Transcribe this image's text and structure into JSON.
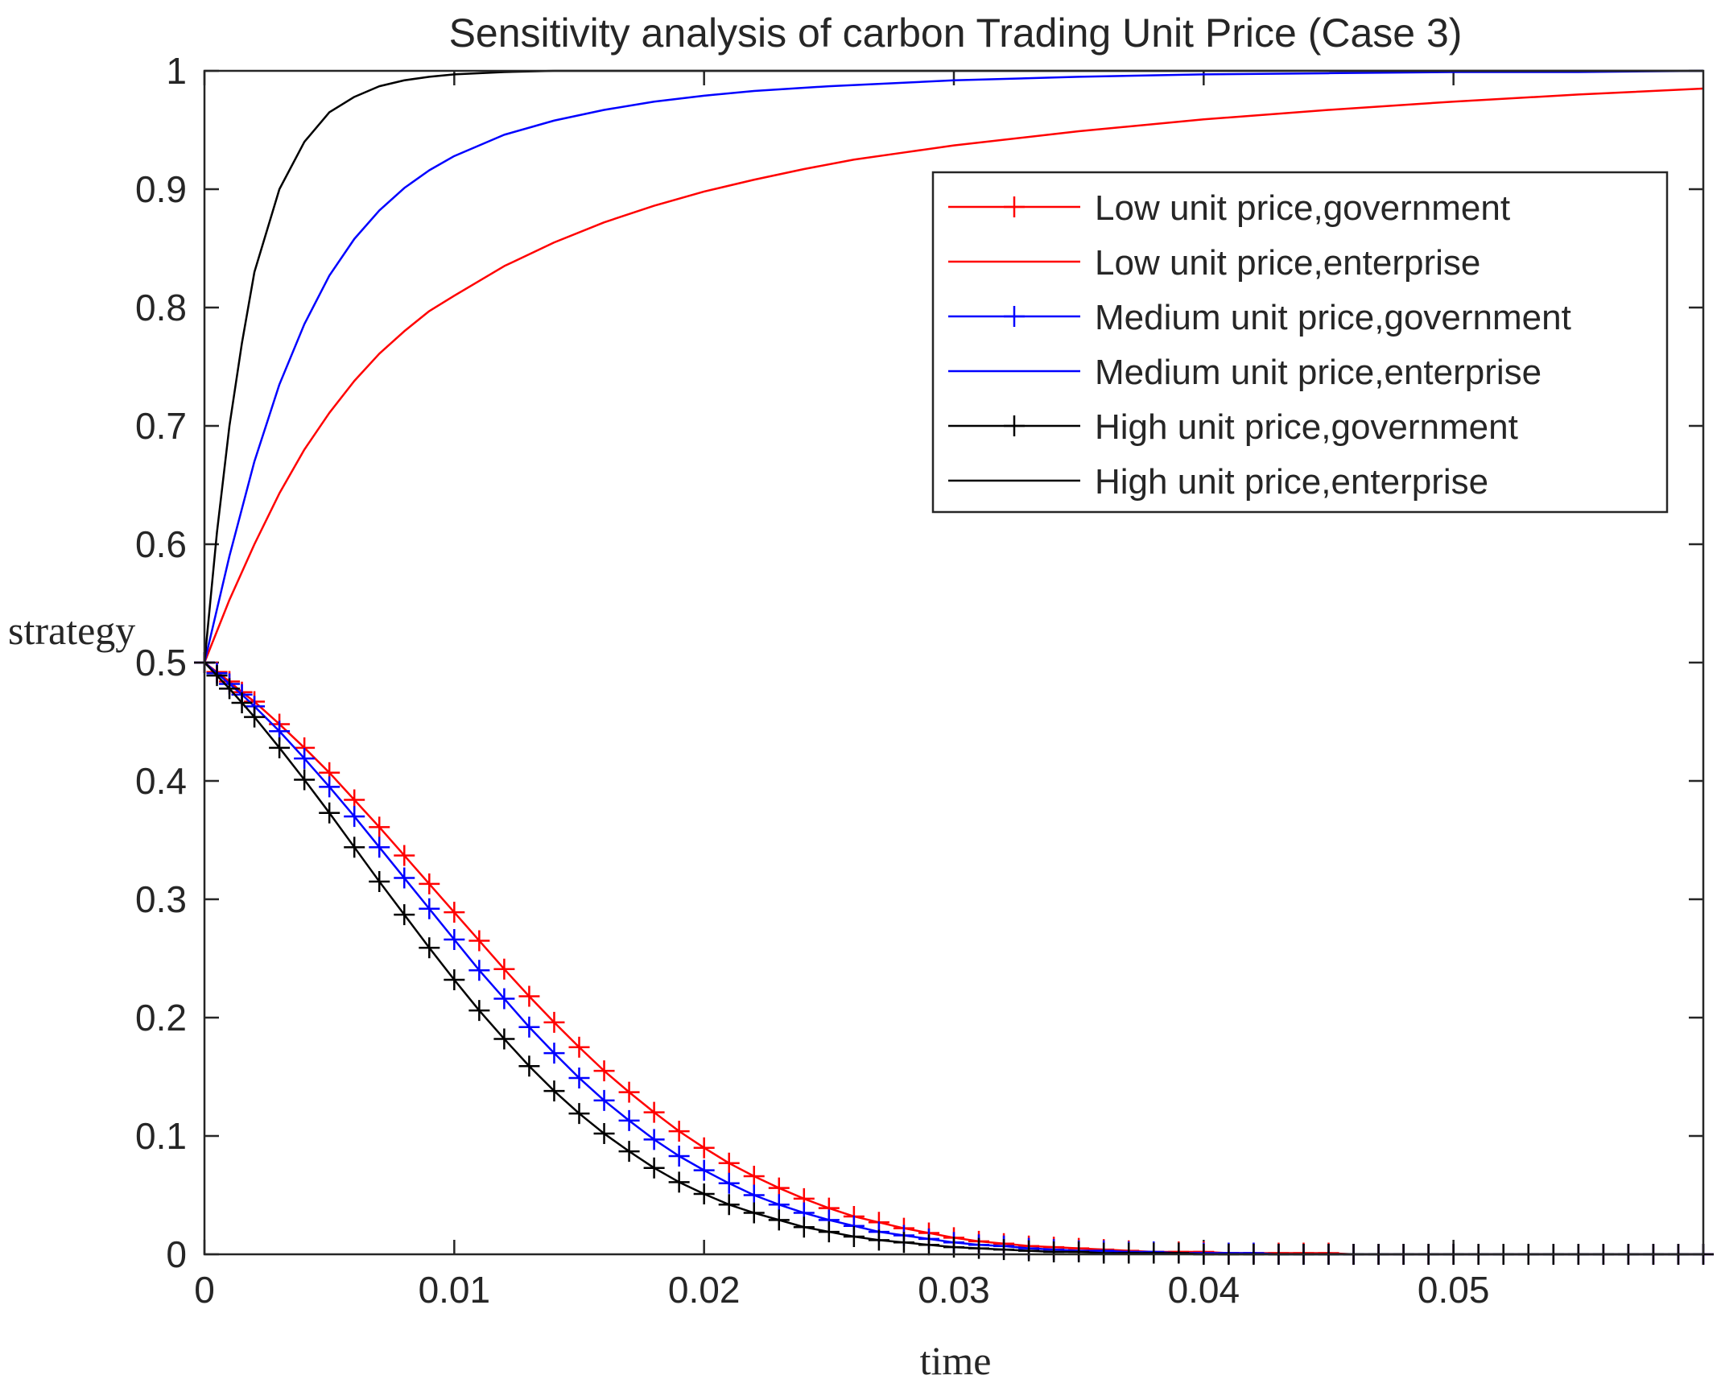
{
  "chart_data": {
    "type": "line",
    "title": "Sensitivity analysis of carbon Trading Unit Price (Case 3)",
    "xlabel": "time",
    "ylabel": "strategy",
    "xlim": [
      0,
      0.06
    ],
    "ylim": [
      0,
      1
    ],
    "xticks": [
      0,
      0.01,
      0.02,
      0.03,
      0.04,
      0.05
    ],
    "xtick_labels": [
      "0",
      "0.01",
      "0.02",
      "0.03",
      "0.04",
      "0.05"
    ],
    "yticks": [
      0,
      0.1,
      0.2,
      0.3,
      0.4,
      0.5,
      0.6,
      0.7,
      0.8,
      0.9,
      1
    ],
    "ytick_labels": [
      "0",
      "0.1",
      "0.2",
      "0.3",
      "0.4",
      "0.5",
      "0.6",
      "0.7",
      "0.8",
      "0.9",
      "1"
    ],
    "legend_position": "top-right",
    "colors": {
      "low": "#ff0000",
      "medium": "#0000ff",
      "high": "#000000",
      "axes": "#262626"
    },
    "series": [
      {
        "name": "Low unit price,government",
        "color": "#ff0000",
        "marker": "+",
        "x": [
          0,
          0.0005,
          0.001,
          0.0015,
          0.002,
          0.003,
          0.004,
          0.005,
          0.006,
          0.007,
          0.008,
          0.009,
          0.01,
          0.011,
          0.012,
          0.013,
          0.014,
          0.015,
          0.016,
          0.017,
          0.018,
          0.019,
          0.02,
          0.021,
          0.022,
          0.023,
          0.024,
          0.025,
          0.026,
          0.027,
          0.028,
          0.029,
          0.03,
          0.031,
          0.032,
          0.033,
          0.034,
          0.035,
          0.036,
          0.037,
          0.038,
          0.039,
          0.04,
          0.041,
          0.042,
          0.043,
          0.044,
          0.045,
          0.046,
          0.047,
          0.048,
          0.049,
          0.05,
          0.051,
          0.052,
          0.053,
          0.054,
          0.055,
          0.056,
          0.057,
          0.058,
          0.059,
          0.06
        ],
        "values": [
          0.5,
          0.492,
          0.484,
          0.475,
          0.467,
          0.448,
          0.428,
          0.407,
          0.384,
          0.361,
          0.337,
          0.313,
          0.289,
          0.265,
          0.241,
          0.218,
          0.196,
          0.175,
          0.155,
          0.137,
          0.12,
          0.104,
          0.09,
          0.077,
          0.066,
          0.056,
          0.047,
          0.039,
          0.032,
          0.027,
          0.022,
          0.018,
          0.014,
          0.011,
          0.009,
          0.007,
          0.006,
          0.005,
          0.004,
          0.003,
          0.002,
          0.002,
          0.002,
          0.001,
          0.001,
          0.001,
          0.001,
          0.001,
          0,
          0,
          0,
          0,
          0,
          0,
          0,
          0,
          0,
          0,
          0,
          0,
          0,
          0,
          0
        ]
      },
      {
        "name": "Low unit price,enterprise",
        "color": "#ff0000",
        "marker": "none",
        "x": [
          0,
          0.001,
          0.002,
          0.003,
          0.004,
          0.005,
          0.006,
          0.007,
          0.008,
          0.009,
          0.01,
          0.012,
          0.014,
          0.016,
          0.018,
          0.02,
          0.022,
          0.024,
          0.026,
          0.028,
          0.03,
          0.035,
          0.04,
          0.045,
          0.05,
          0.055,
          0.06
        ],
        "values": [
          0.5,
          0.553,
          0.6,
          0.643,
          0.68,
          0.711,
          0.738,
          0.761,
          0.78,
          0.797,
          0.81,
          0.835,
          0.855,
          0.872,
          0.886,
          0.898,
          0.908,
          0.917,
          0.925,
          0.931,
          0.937,
          0.949,
          0.959,
          0.967,
          0.974,
          0.98,
          0.985
        ]
      },
      {
        "name": "Medium unit price,government",
        "color": "#0000ff",
        "marker": "+",
        "x": [
          0,
          0.0005,
          0.001,
          0.0015,
          0.002,
          0.003,
          0.004,
          0.005,
          0.006,
          0.007,
          0.008,
          0.009,
          0.01,
          0.011,
          0.012,
          0.013,
          0.014,
          0.015,
          0.016,
          0.017,
          0.018,
          0.019,
          0.02,
          0.021,
          0.022,
          0.023,
          0.024,
          0.025,
          0.026,
          0.027,
          0.028,
          0.029,
          0.03,
          0.031,
          0.032,
          0.033,
          0.034,
          0.035,
          0.036,
          0.037,
          0.038,
          0.039,
          0.04,
          0.041,
          0.042,
          0.043,
          0.044,
          0.045,
          0.046,
          0.047,
          0.048,
          0.049,
          0.05,
          0.051,
          0.052,
          0.053,
          0.054,
          0.055,
          0.056,
          0.057,
          0.058,
          0.059,
          0.06
        ],
        "values": [
          0.5,
          0.491,
          0.482,
          0.473,
          0.463,
          0.442,
          0.419,
          0.395,
          0.37,
          0.344,
          0.318,
          0.292,
          0.266,
          0.24,
          0.216,
          0.192,
          0.17,
          0.149,
          0.13,
          0.113,
          0.097,
          0.083,
          0.071,
          0.06,
          0.05,
          0.042,
          0.035,
          0.029,
          0.024,
          0.019,
          0.016,
          0.013,
          0.01,
          0.008,
          0.007,
          0.005,
          0.004,
          0.003,
          0.003,
          0.002,
          0.002,
          0.001,
          0.001,
          0.001,
          0.001,
          0,
          0,
          0,
          0,
          0,
          0,
          0,
          0,
          0,
          0,
          0,
          0,
          0,
          0,
          0,
          0,
          0,
          0
        ]
      },
      {
        "name": "Medium unit price,enterprise",
        "color": "#0000ff",
        "marker": "none",
        "x": [
          0,
          0.001,
          0.002,
          0.003,
          0.004,
          0.005,
          0.006,
          0.007,
          0.008,
          0.009,
          0.01,
          0.012,
          0.014,
          0.016,
          0.018,
          0.02,
          0.022,
          0.025,
          0.03,
          0.035,
          0.04,
          0.045,
          0.05,
          0.055,
          0.06
        ],
        "values": [
          0.5,
          0.59,
          0.67,
          0.735,
          0.786,
          0.827,
          0.858,
          0.882,
          0.901,
          0.916,
          0.928,
          0.946,
          0.958,
          0.967,
          0.974,
          0.979,
          0.983,
          0.987,
          0.992,
          0.995,
          0.997,
          0.998,
          0.999,
          0.999,
          1
        ]
      },
      {
        "name": "High unit price,government",
        "color": "#000000",
        "marker": "+",
        "x": [
          0,
          0.0005,
          0.001,
          0.0015,
          0.002,
          0.003,
          0.004,
          0.005,
          0.006,
          0.007,
          0.008,
          0.009,
          0.01,
          0.011,
          0.012,
          0.013,
          0.014,
          0.015,
          0.016,
          0.017,
          0.018,
          0.019,
          0.02,
          0.021,
          0.022,
          0.023,
          0.024,
          0.025,
          0.026,
          0.027,
          0.028,
          0.029,
          0.03,
          0.031,
          0.032,
          0.033,
          0.034,
          0.035,
          0.036,
          0.037,
          0.038,
          0.039,
          0.04,
          0.041,
          0.042,
          0.043,
          0.044,
          0.045,
          0.046,
          0.047,
          0.048,
          0.049,
          0.05,
          0.051,
          0.052,
          0.053,
          0.054,
          0.055,
          0.056,
          0.057,
          0.058,
          0.059,
          0.06
        ],
        "values": [
          0.5,
          0.489,
          0.478,
          0.466,
          0.454,
          0.428,
          0.401,
          0.373,
          0.344,
          0.315,
          0.287,
          0.259,
          0.232,
          0.206,
          0.182,
          0.159,
          0.138,
          0.119,
          0.102,
          0.087,
          0.073,
          0.061,
          0.051,
          0.042,
          0.035,
          0.029,
          0.023,
          0.019,
          0.015,
          0.012,
          0.01,
          0.008,
          0.006,
          0.005,
          0.004,
          0.003,
          0.002,
          0.002,
          0.001,
          0.001,
          0.001,
          0.001,
          0,
          0,
          0,
          0,
          0,
          0,
          0,
          0,
          0,
          0,
          0,
          0,
          0,
          0,
          0,
          0,
          0,
          0,
          0,
          0,
          0
        ]
      },
      {
        "name": "High unit price,enterprise",
        "color": "#000000",
        "marker": "none",
        "x": [
          0,
          0.0005,
          0.001,
          0.0015,
          0.002,
          0.003,
          0.004,
          0.005,
          0.006,
          0.007,
          0.008,
          0.009,
          0.01,
          0.012,
          0.014,
          0.016,
          0.02,
          0.03,
          0.04,
          0.05,
          0.06
        ],
        "values": [
          0.5,
          0.61,
          0.7,
          0.77,
          0.83,
          0.9,
          0.94,
          0.965,
          0.978,
          0.987,
          0.992,
          0.995,
          0.997,
          0.999,
          1,
          1,
          1,
          1,
          1,
          1,
          1
        ]
      }
    ]
  }
}
